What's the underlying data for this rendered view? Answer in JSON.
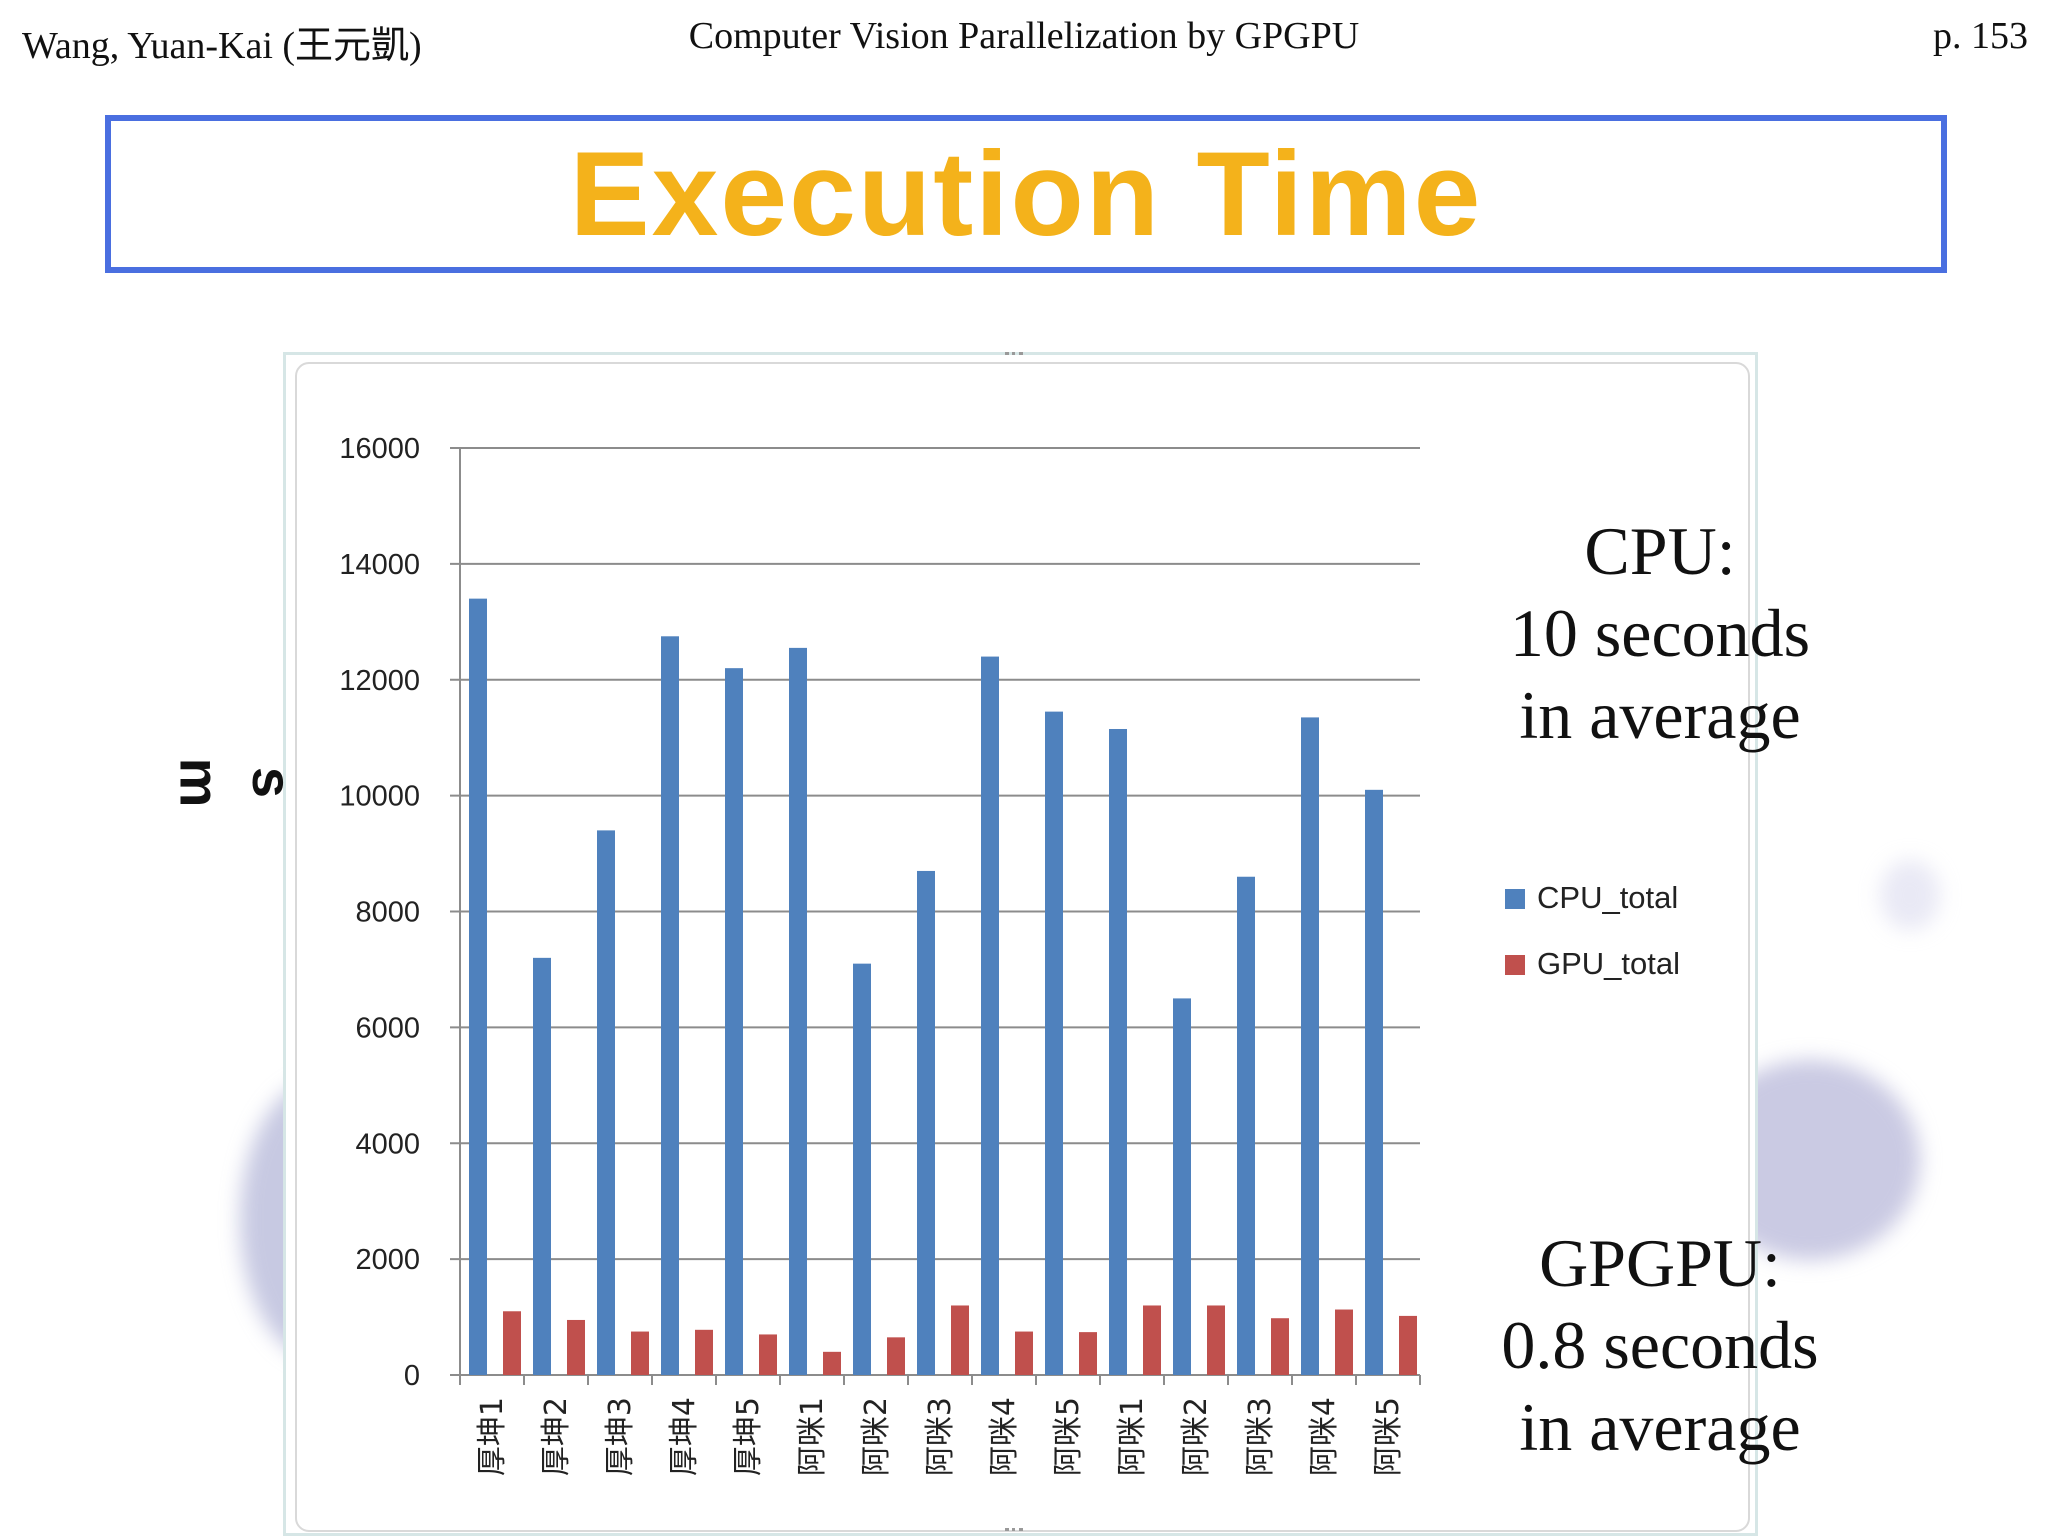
{
  "header": {
    "author": "Wang, Yuan-Kai (王元凱)",
    "course": "Computer Vision Parallelization by GPGPU",
    "page": "p. 153"
  },
  "slide": {
    "title": "Execution Time"
  },
  "notes": {
    "cpu": [
      "CPU:",
      "10 seconds",
      "in average"
    ],
    "gpu": [
      "GPGPU:",
      "0.8 seconds",
      "in average"
    ]
  },
  "colors": {
    "cpu": "#4f81bd",
    "gpu": "#c0504d",
    "title": "#f4b21b",
    "title_border": "#4a6fe0"
  },
  "chart_data": {
    "type": "bar",
    "ylabel": "ms",
    "ylim": [
      0,
      16000
    ],
    "yticks": [
      0,
      2000,
      4000,
      6000,
      8000,
      10000,
      12000,
      14000,
      16000
    ],
    "grid": true,
    "legend_position": "right",
    "categories": [
      "厚坤1",
      "厚坤2",
      "厚坤3",
      "厚坤4",
      "厚坤5",
      "阿咪1",
      "阿咪2",
      "阿咪3",
      "阿咪4",
      "阿咪5",
      "阿咪1",
      "阿咪2",
      "阿咪3",
      "阿咪4",
      "阿咪5"
    ],
    "series": [
      {
        "name": "CPU_total",
        "values": [
          13400,
          7200,
          9400,
          12750,
          12200,
          12550,
          7100,
          8700,
          12400,
          11450,
          11150,
          6500,
          8600,
          11350,
          10100
        ]
      },
      {
        "name": "GPU_total",
        "values": [
          1100,
          950,
          750,
          780,
          700,
          400,
          650,
          1200,
          750,
          740,
          1200,
          1200,
          980,
          1130,
          1020
        ]
      }
    ]
  }
}
